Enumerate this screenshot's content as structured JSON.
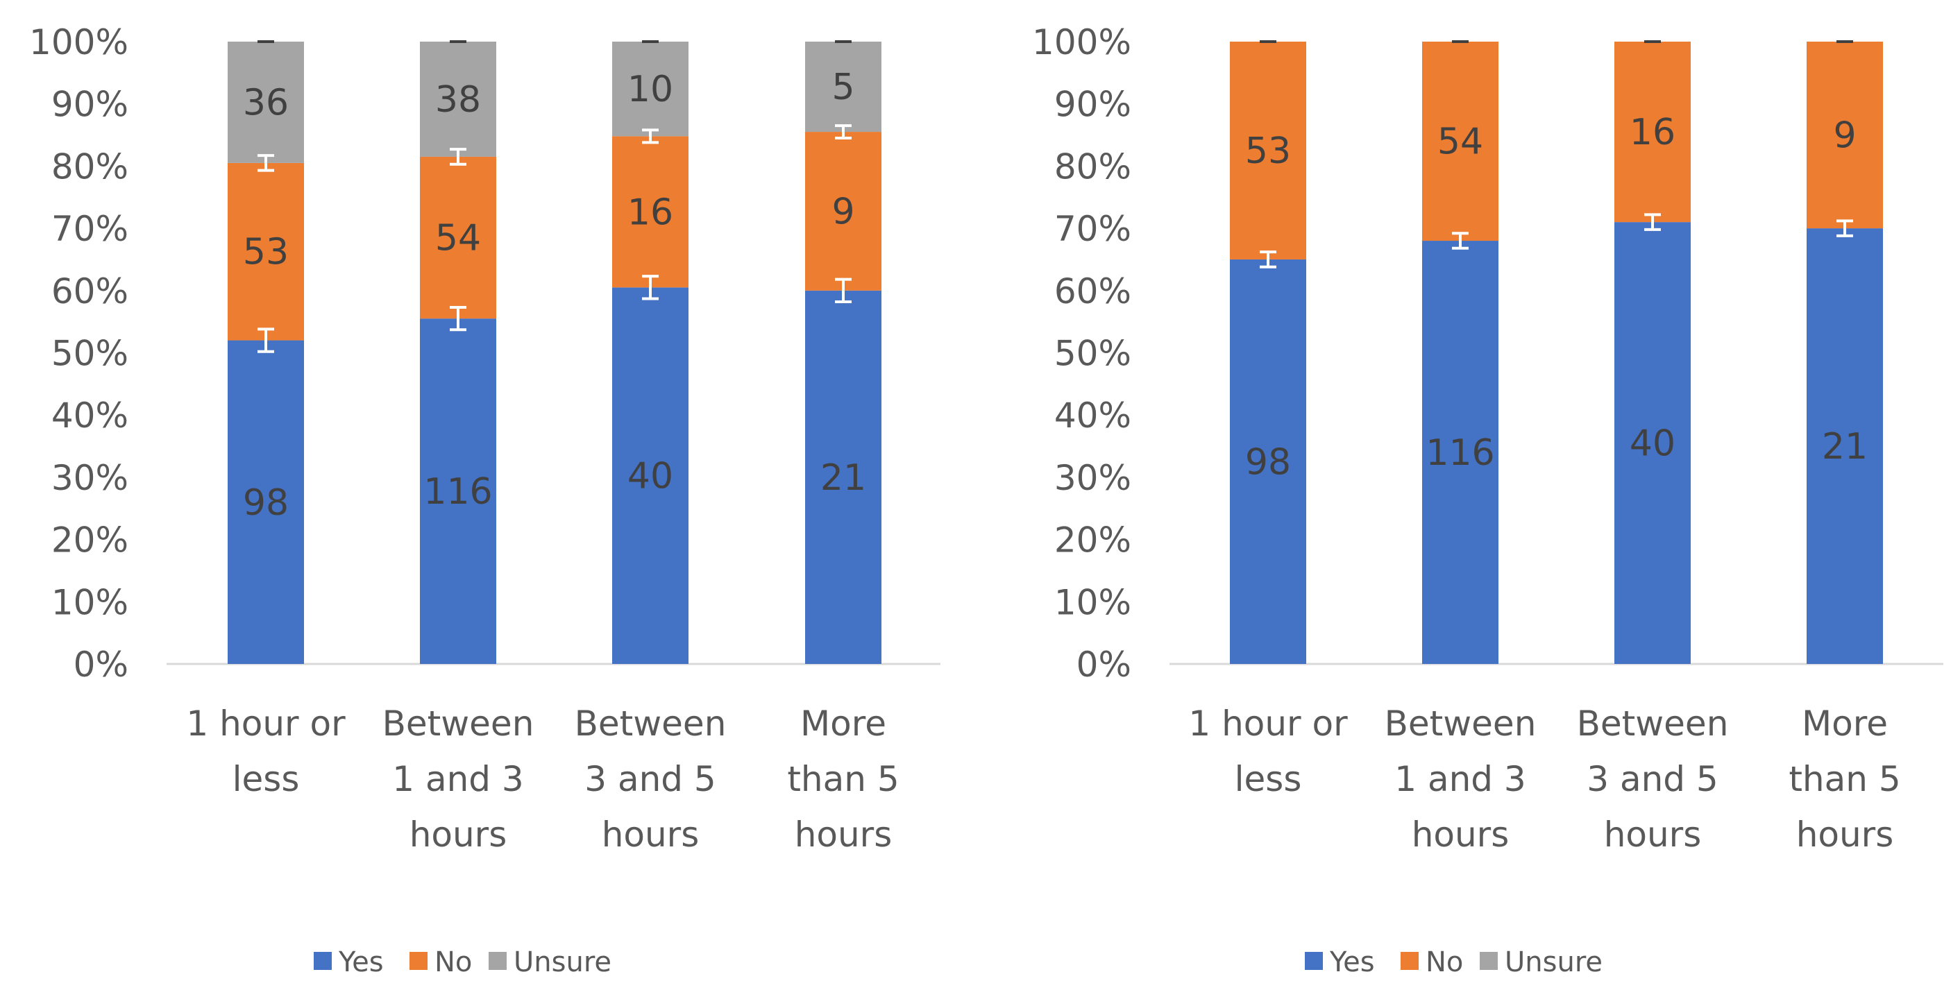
{
  "colors": {
    "Yes": "#4472C4",
    "No": "#ED7D31",
    "Unsure": "#A5A5A5",
    "axis": "#D9D9D9",
    "text": "#595959",
    "label": "#404040",
    "errorbar": "#FFFFFF"
  },
  "chart_data": [
    {
      "type": "bar",
      "stacked": true,
      "title": "",
      "xlabel": "",
      "ylabel": "",
      "ylim": [
        0,
        100
      ],
      "yticks": [
        "0%",
        "10%",
        "20%",
        "30%",
        "40%",
        "50%",
        "60%",
        "70%",
        "80%",
        "90%",
        "100%"
      ],
      "categories": [
        [
          "1 hour or",
          "less"
        ],
        [
          "Between",
          "1 and 3",
          "hours"
        ],
        [
          "Between",
          "3 and 5",
          "hours"
        ],
        [
          "More",
          "than 5",
          "hours"
        ]
      ],
      "series": [
        {
          "name": "Yes",
          "values": [
            52,
            55.5,
            60.5,
            60
          ],
          "labels": [
            "98",
            "116",
            "40",
            "21"
          ],
          "error": [
            1.8,
            1.8,
            1.8,
            1.8
          ]
        },
        {
          "name": "No",
          "values": [
            28.5,
            26,
            24.3,
            25.5
          ],
          "labels": [
            "53",
            "54",
            "16",
            "9"
          ],
          "error": [
            1.2,
            1.2,
            1.0,
            1.0
          ]
        },
        {
          "name": "Unsure",
          "values": [
            19.5,
            18.5,
            15.2,
            14.5
          ],
          "labels": [
            "36",
            "38",
            "10",
            "5"
          ],
          "error": [
            0,
            0,
            0,
            0
          ]
        }
      ],
      "legend": {
        "position": "bottom",
        "entries": [
          "Yes",
          "No",
          "Unsure"
        ]
      },
      "grid": false
    },
    {
      "type": "bar",
      "stacked": true,
      "title": "",
      "xlabel": "",
      "ylabel": "",
      "ylim": [
        0,
        100
      ],
      "yticks": [
        "0%",
        "10%",
        "20%",
        "30%",
        "40%",
        "50%",
        "60%",
        "70%",
        "80%",
        "90%",
        "100%"
      ],
      "categories": [
        [
          "1 hour or",
          "less"
        ],
        [
          "Between",
          "1 and 3",
          "hours"
        ],
        [
          "Between",
          "3 and 5",
          "hours"
        ],
        [
          "More",
          "than 5",
          "hours"
        ]
      ],
      "series": [
        {
          "name": "Yes",
          "values": [
            65,
            68,
            71,
            70
          ],
          "labels": [
            "98",
            "116",
            "40",
            "21"
          ],
          "error": [
            1.2,
            1.2,
            1.2,
            1.2
          ]
        },
        {
          "name": "No",
          "values": [
            35,
            32,
            29,
            30
          ],
          "labels": [
            "53",
            "54",
            "16",
            "9"
          ],
          "error": [
            0,
            0,
            0,
            0
          ]
        }
      ],
      "legend": {
        "position": "bottom",
        "entries": [
          "Yes",
          "No",
          "Unsure"
        ]
      },
      "grid": false
    }
  ]
}
